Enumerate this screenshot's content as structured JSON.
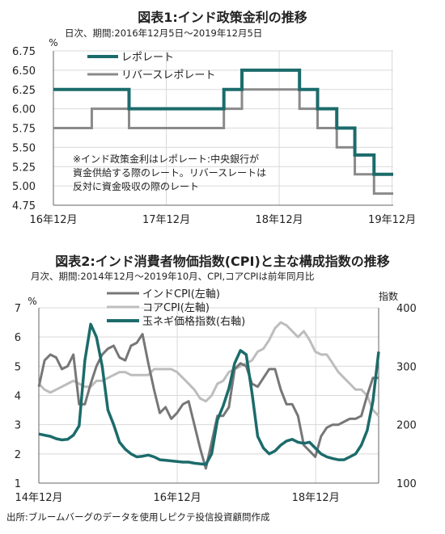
{
  "chart_data": [
    {
      "type": "line",
      "title": "図表1:インド政策金利の推移",
      "subtitle": "日次、期間:2016年12月5日～2019年12月5日",
      "ylabel": "%",
      "ylim": [
        4.75,
        6.75
      ],
      "yticks": [
        "6.75",
        "6.50",
        "6.25",
        "6.00",
        "5.75",
        "5.50",
        "5.25",
        "5.00",
        "4.75"
      ],
      "xticks": [
        {
          "label": "16年12月",
          "x": 2016.92
        },
        {
          "label": "17年12月",
          "x": 2017.92
        },
        {
          "label": "18年12月",
          "x": 2018.92
        },
        {
          "label": "19年12月",
          "x": 2019.92
        }
      ],
      "xlim": [
        2016.92,
        2019.93
      ],
      "grid": true,
      "legend_position": "top-left",
      "note": [
        "※インド政策金利はレポレート:中央銀行が",
        "資金供給する際のレート。リバースレートは",
        "反対に資金吸収の際のレート"
      ],
      "series": [
        {
          "name": "レポレート",
          "color": "#1c6b6b",
          "step": true,
          "points": [
            [
              2016.92,
              6.25
            ],
            [
              2017.59,
              6.0
            ],
            [
              2018.43,
              6.25
            ],
            [
              2018.59,
              6.5
            ],
            [
              2019.1,
              6.25
            ],
            [
              2019.26,
              6.0
            ],
            [
              2019.43,
              5.75
            ],
            [
              2019.59,
              5.4
            ],
            [
              2019.76,
              5.15
            ],
            [
              2019.93,
              5.15
            ]
          ]
        },
        {
          "name": "リバースレポレート",
          "color": "#8a8a8a",
          "step": true,
          "points": [
            [
              2016.92,
              5.75
            ],
            [
              2017.26,
              6.0
            ],
            [
              2017.59,
              5.75
            ],
            [
              2018.43,
              6.0
            ],
            [
              2018.59,
              6.25
            ],
            [
              2019.1,
              6.0
            ],
            [
              2019.26,
              5.75
            ],
            [
              2019.43,
              5.5
            ],
            [
              2019.59,
              5.15
            ],
            [
              2019.76,
              4.9
            ],
            [
              2019.93,
              4.9
            ]
          ]
        }
      ]
    },
    {
      "type": "line",
      "title": "図表2:インド消費者物価指数(CPI)と主な構成指数の推移",
      "subtitle": "月次、期間:2014年12月～2019年10月、CPI,コアCPIは前年同月比",
      "ylabel_left": "%",
      "ylabel_right": "指数",
      "ylim_left": [
        1,
        7
      ],
      "ylim_right": [
        100,
        400
      ],
      "yticks_left": [
        "7",
        "6",
        "5",
        "4",
        "3",
        "2",
        "1"
      ],
      "yticks_right": [
        "400",
        "300",
        "200",
        "100"
      ],
      "xticks": [
        {
          "label": "14年12月",
          "x": 2014.92
        },
        {
          "label": "16年12月",
          "x": 2016.92
        },
        {
          "label": "18年12月",
          "x": 2018.92
        }
      ],
      "xlim": [
        2014.92,
        2019.83
      ],
      "grid": true,
      "legend_position": "top-center",
      "series": [
        {
          "name": "インドCPI(左軸)",
          "axis": "left",
          "color": "#777777",
          "values": [
            4.3,
            5.2,
            5.4,
            5.3,
            4.9,
            5.0,
            5.4,
            3.7,
            3.7,
            4.4,
            5.0,
            5.4,
            5.6,
            5.7,
            5.3,
            5.2,
            5.7,
            5.8,
            6.1,
            5.1,
            4.2,
            3.4,
            3.6,
            3.2,
            3.4,
            3.7,
            3.8,
            3.0,
            2.2,
            1.5,
            2.4,
            3.3,
            3.3,
            3.6,
            4.9,
            5.1,
            5.0,
            4.4,
            4.3,
            4.6,
            4.9,
            4.9,
            4.2,
            3.7,
            3.7,
            3.3,
            2.3,
            2.1,
            1.9,
            2.6,
            2.9,
            3.0,
            3.0,
            3.1,
            3.2,
            3.2,
            3.3,
            4.0,
            4.6,
            4.6
          ]
        },
        {
          "name": "コアCPI(左軸)",
          "axis": "left",
          "color": "#bdbdbd",
          "values": [
            4.4,
            4.2,
            4.1,
            4.2,
            4.3,
            4.4,
            4.5,
            4.4,
            4.3,
            4.3,
            4.5,
            4.5,
            4.6,
            4.7,
            4.8,
            4.8,
            4.7,
            4.7,
            4.7,
            4.7,
            4.9,
            4.9,
            4.9,
            4.9,
            4.8,
            4.6,
            4.4,
            4.2,
            3.9,
            3.8,
            4.0,
            4.4,
            4.5,
            4.8,
            4.9,
            5.0,
            5.1,
            5.2,
            5.5,
            5.6,
            5.9,
            6.3,
            6.5,
            6.4,
            6.2,
            6.0,
            6.2,
            5.9,
            5.5,
            5.4,
            5.4,
            5.1,
            4.8,
            4.6,
            4.4,
            4.2,
            4.2,
            4.0,
            3.5,
            3.3
          ]
        },
        {
          "name": "玉ネギ価格指数(右軸)",
          "axis": "right",
          "color": "#1c6b6b",
          "values": [
            184,
            182,
            180,
            176,
            174,
            175,
            182,
            198,
            310,
            372,
            350,
            300,
            225,
            200,
            170,
            158,
            150,
            145,
            146,
            148,
            145,
            140,
            139,
            138,
            137,
            136,
            136,
            134,
            133,
            132,
            150,
            208,
            232,
            262,
            305,
            327,
            320,
            255,
            180,
            160,
            150,
            155,
            165,
            172,
            175,
            170,
            168,
            170,
            160,
            150,
            145,
            142,
            140,
            140,
            145,
            150,
            165,
            190,
            240,
            325
          ]
        }
      ]
    }
  ],
  "source": "出所:ブルームバーグのデータを使用しピクテ投信投資顧問作成"
}
